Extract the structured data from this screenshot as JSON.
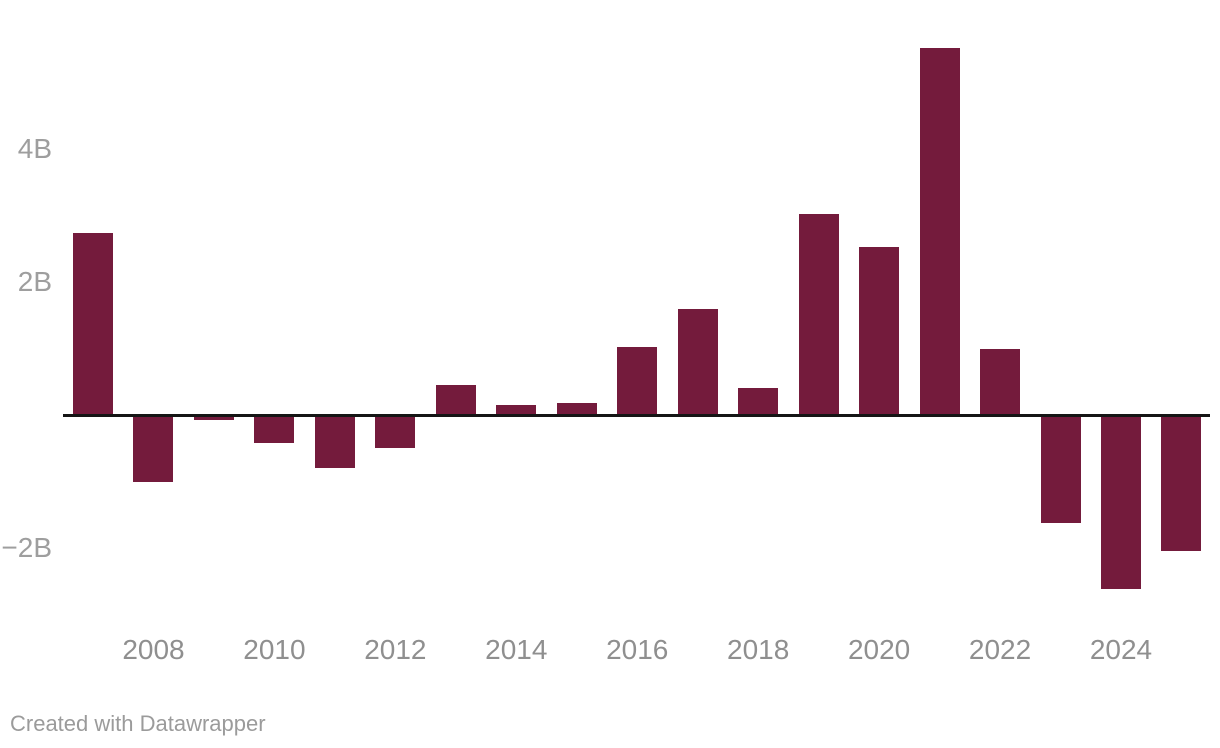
{
  "chart_data": {
    "type": "bar",
    "title": "",
    "xlabel": "",
    "ylabel": "",
    "unit": "B",
    "categories": [
      "2007",
      "2008",
      "2009",
      "2010",
      "2011",
      "2012",
      "2013",
      "2014",
      "2015",
      "2016",
      "2017",
      "2018",
      "2019",
      "2020",
      "2021",
      "2022",
      "2023",
      "2024",
      "2025"
    ],
    "values": [
      2.73,
      -1.01,
      -0.07,
      -0.42,
      -0.8,
      -0.49,
      0.45,
      0.15,
      0.18,
      1.03,
      1.6,
      0.41,
      3.03,
      2.53,
      5.52,
      1.0,
      -1.62,
      -2.61,
      -2.04
    ],
    "ylim": [
      -2.7,
      5.6
    ],
    "y_axis_ticks": [
      {
        "value": 4,
        "label": "4B"
      },
      {
        "value": 2,
        "label": "2B"
      },
      {
        "value": -2,
        "label": "−2B"
      }
    ],
    "x_axis_tick_labels": [
      "2008",
      "2010",
      "2012",
      "2014",
      "2016",
      "2018",
      "2020",
      "2022",
      "2024"
    ],
    "grid": false,
    "legend": "none",
    "baseline_shown": true,
    "bar_color": "#741B3C",
    "axis_line_color": "#151515",
    "x_tick_label_color": "#8F8F8F",
    "y_tick_label_color": "#9E9E9E"
  },
  "footer": {
    "attribution": "Created with Datawrapper"
  }
}
